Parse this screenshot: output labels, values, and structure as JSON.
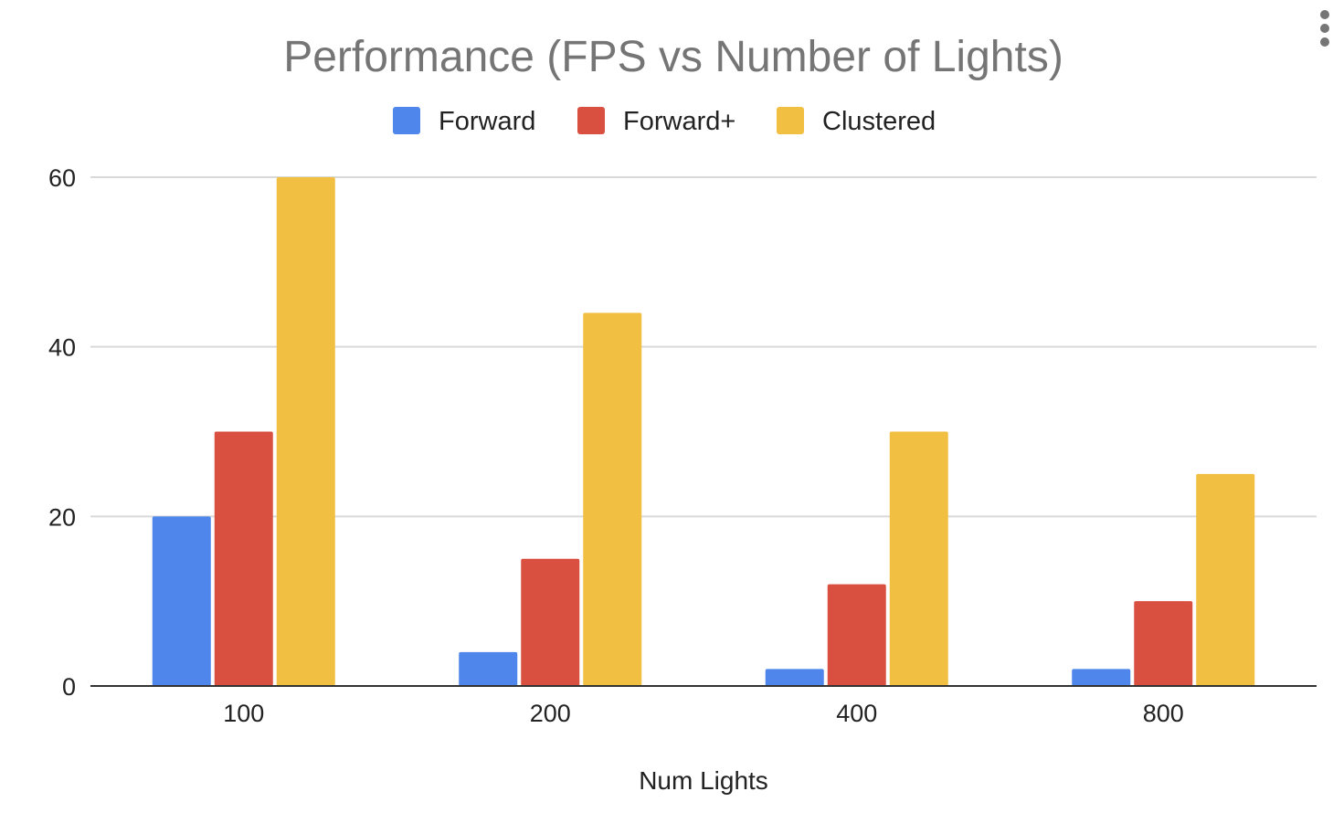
{
  "chart_data": {
    "type": "bar",
    "title": "Performance (FPS vs Number of Lights)",
    "xlabel": "Num Lights",
    "ylabel": "",
    "categories": [
      "100",
      "200",
      "400",
      "800"
    ],
    "series": [
      {
        "name": "Forward",
        "color": "#4f86ec",
        "values": [
          20,
          4,
          2,
          2
        ]
      },
      {
        "name": "Forward+",
        "color": "#d95040",
        "values": [
          30,
          15,
          12,
          10
        ]
      },
      {
        "name": "Clustered",
        "color": "#f1bf42",
        "values": [
          60,
          44,
          30,
          25
        ]
      }
    ],
    "ylim": [
      0,
      60
    ],
    "yticks": [
      0,
      20,
      40,
      60
    ],
    "grid": true,
    "legend_position": "top-center"
  },
  "menu": {
    "icon": "more-vert-icon"
  }
}
